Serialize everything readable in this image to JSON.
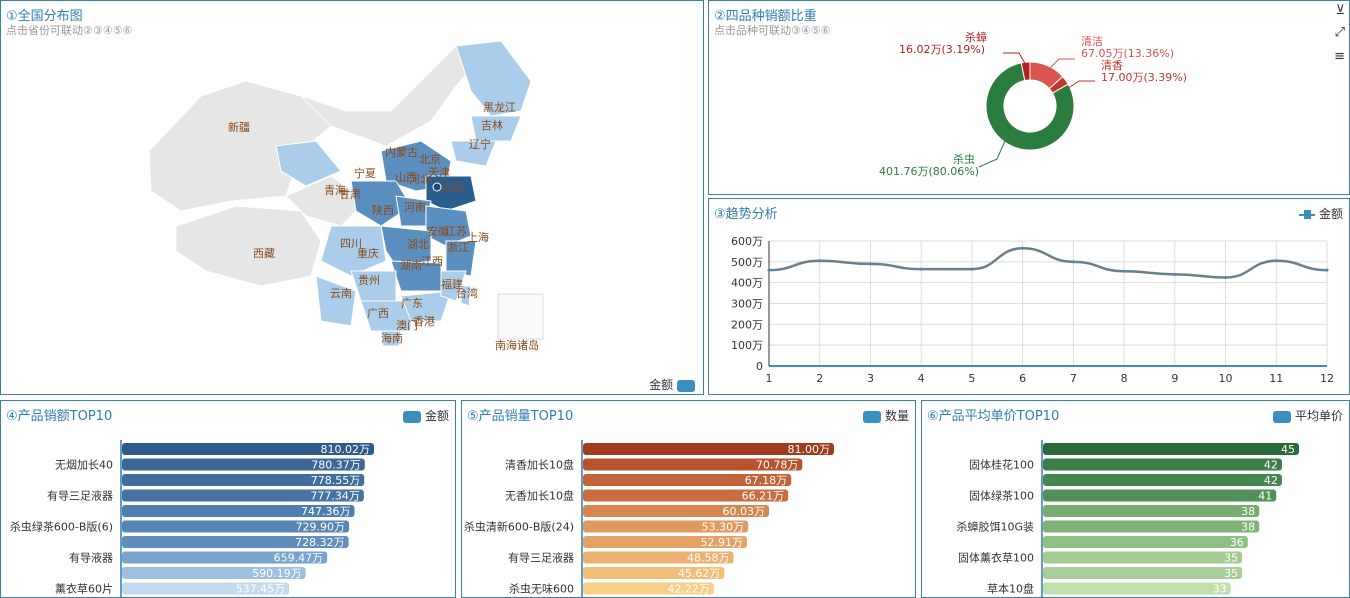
{
  "map_panel": {
    "title": "①全国分布图",
    "subtitle": "点击省份可联动②③④⑤⑥",
    "legend_label": "金额",
    "provinces": [
      "黑龙江",
      "吉林",
      "辽宁",
      "内蒙古",
      "北京",
      "天津",
      "山西",
      "河北",
      "宁夏",
      "新疆",
      "青海",
      "甘肃",
      "陕西",
      "河南",
      "山东",
      "西藏",
      "四川",
      "重庆",
      "湖北",
      "安徽",
      "江苏",
      "上海",
      "浙江",
      "湖南",
      "江西",
      "贵州",
      "福建",
      "台湾",
      "云南",
      "广西",
      "广东",
      "澳门",
      "香港",
      "海南",
      "南海诸岛"
    ],
    "colors": {
      "high": "#2c5d8f",
      "mid": "#5b8fc0",
      "low": "#a9cdea",
      "none": "#e6e6e6"
    }
  },
  "donut_panel": {
    "title": "②四品种销额比重",
    "subtitle": "点击品种可联动③④⑤⑥",
    "chart_data": {
      "type": "pie",
      "slices": [
        {
          "name": "杀虫",
          "value": 401.76,
          "label": "401.76万(80.06%)",
          "color": "#2a7d3e"
        },
        {
          "name": "清洁",
          "value": 67.05,
          "label": "67.05万(13.36%)",
          "color": "#d9534f"
        },
        {
          "name": "清香",
          "value": 17.0,
          "label": "17.00万(3.39%)",
          "color": "#c0392b"
        },
        {
          "name": "杀蟑",
          "value": 16.02,
          "label": "16.02万(3.19%)",
          "color": "#b22222"
        }
      ]
    }
  },
  "trend_panel": {
    "title": "③趋势分析",
    "legend_label": "金额",
    "chart_data": {
      "type": "line",
      "x": [
        1,
        2,
        3,
        4,
        5,
        6,
        7,
        8,
        9,
        10,
        11,
        12
      ],
      "series": [
        {
          "name": "金额",
          "values": [
            460,
            505,
            490,
            465,
            465,
            565,
            500,
            455,
            440,
            425,
            505,
            460
          ]
        }
      ],
      "ylim": [
        0,
        600
      ],
      "yticks": [
        "0",
        "100万",
        "200万",
        "300万",
        "400万",
        "500万",
        "600万"
      ],
      "grid": true
    }
  },
  "top_amount": {
    "title": "④产品销额TOP10",
    "legend_label": "金额",
    "chart_data": {
      "type": "bar",
      "categories": [
        "",
        "无烟加长40",
        "",
        "有导三足液器",
        "",
        "杀虫绿茶600-B版(6)",
        "",
        "有导液器",
        "",
        "薰衣草60片"
      ],
      "values": [
        810.02,
        780.37,
        778.55,
        777.34,
        747.36,
        729.9,
        728.32,
        659.47,
        590.19,
        537.45
      ],
      "labels": [
        "810.02万",
        "780.37万",
        "778.55万",
        "777.34万",
        "747.36万",
        "729.90万",
        "728.32万",
        "659.47万",
        "590.19万",
        "537.45万"
      ],
      "colors": [
        "#2e5b8c",
        "#3a6899",
        "#3f6e9f",
        "#4473a4",
        "#4d7eaf",
        "#5585b5",
        "#5f8ebd",
        "#77a3cc",
        "#9dc0e0",
        "#c3daee"
      ]
    }
  },
  "top_qty": {
    "title": "⑤产品销量TOP10",
    "legend_label": "数量",
    "chart_data": {
      "type": "bar",
      "categories": [
        "",
        "清香加长10盘",
        "",
        "无香加长10盘",
        "",
        "杀虫清新600-B版(24)",
        "",
        "有导三足液器",
        "",
        "杀虫无味600"
      ],
      "values": [
        81.0,
        70.78,
        67.18,
        66.21,
        60.03,
        53.3,
        52.91,
        48.58,
        45.62,
        42.22
      ],
      "labels": [
        "81.00万",
        "70.78万",
        "67.18万",
        "66.21万",
        "60.03万",
        "53.30万",
        "52.91万",
        "48.58万",
        "45.62万",
        "42.22万"
      ],
      "colors": [
        "#a23c1e",
        "#b8532e",
        "#c2643a",
        "#c86d40",
        "#d6874f",
        "#e09a5f",
        "#e4a265",
        "#ecb16f",
        "#f2be78",
        "#f7cf88"
      ]
    }
  },
  "top_price": {
    "title": "⑥产品平均单价TOP10",
    "legend_label": "平均单价",
    "chart_data": {
      "type": "bar",
      "categories": [
        "",
        "固体桂花100",
        "",
        "固体绿茶100",
        "",
        "杀蟑胶饵10G装",
        "",
        "固体薰衣草100",
        "",
        "草本10盘"
      ],
      "values": [
        45,
        42,
        42,
        41,
        38,
        38,
        36,
        35,
        35,
        33
      ],
      "labels": [
        "45",
        "42",
        "42",
        "41",
        "38",
        "38",
        "36",
        "35",
        "35",
        "33"
      ],
      "colors": [
        "#2a6a3a",
        "#3c7d48",
        "#458650",
        "#519158",
        "#76ad6f",
        "#7db374",
        "#8fc083",
        "#a3cc93",
        "#a8cf97",
        "#bfe0ab"
      ]
    }
  },
  "donut_tools": [
    "filter-icon",
    "fullscreen-icon",
    "menu-icon"
  ]
}
